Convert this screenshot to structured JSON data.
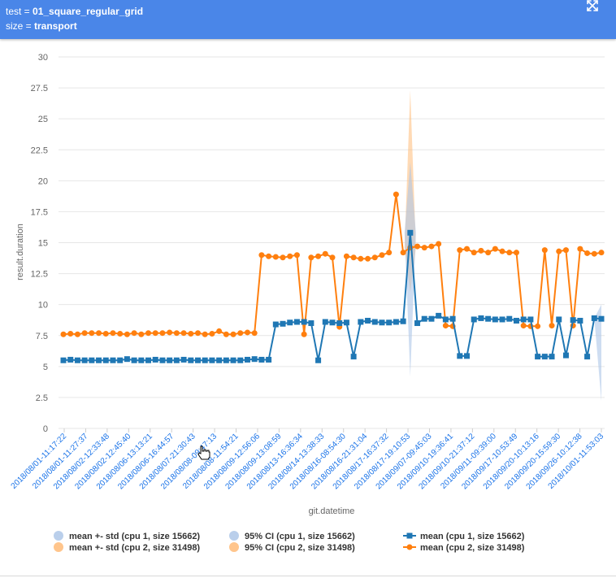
{
  "header": {
    "line1_key": "test = ",
    "line1_value": "01_square_regular_grid",
    "line2_key": "size = ",
    "line2_value": "transport",
    "expand_icon": "expand-icon"
  },
  "colors": {
    "header_bg": "#4a86e8",
    "series1": "#1f77b4",
    "series2": "#ff7f0e",
    "band1": "#aec7e8",
    "band2": "#ffbb78",
    "tick_label": "#1a73e8"
  },
  "chart_data": {
    "type": "line",
    "xlabel": "git.datetime",
    "ylabel": "result.duration",
    "ylim": [
      0,
      30
    ],
    "yticks": [
      "0",
      "2.5",
      "5",
      "7.5",
      "10",
      "12.5",
      "15",
      "17.5",
      "20",
      "22.5",
      "25",
      "27.5",
      "30"
    ],
    "grid": true,
    "legend_position": "bottom",
    "x_tick_labels": [
      "2018/08/01-11:17:22",
      "2018/08/01-11:27:37",
      "2018/08/02-12:33:48",
      "2018/08/02-12:45:40",
      "2018/08/06-13:13:21",
      "2018/08/06-16:44:57",
      "2018/08/07-21:30:43",
      "2018/08/08-09:47:13",
      "2018/08/08-11:54:21",
      "2018/08/09-12:56:06",
      "2018/08/09-13:08:59",
      "2018/08/13-16:36:34",
      "2018/08/14-13:38:33",
      "2018/08/16-08:54:30",
      "2018/08/16-21:31:04",
      "2018/08/17-16:37:32",
      "2018/08/17-19:10:53",
      "2018/09/07-09:45:03",
      "2018/09/10-19:36:41",
      "2018/09/10-21:37:12",
      "2018/09/11-09:39:00",
      "2018/09/17-10:53:49",
      "2018/09/20-10:13:16",
      "2018/09/20-15:59:30",
      "2018/09/26-10:12:38",
      "2018/10/01-11:53:03"
    ],
    "n_points": 77,
    "series": [
      {
        "name": "mean (cpu 1, size 15662)",
        "marker": "square",
        "values": [
          5.5,
          5.55,
          5.5,
          5.5,
          5.5,
          5.5,
          5.5,
          5.5,
          5.5,
          5.6,
          5.5,
          5.5,
          5.5,
          5.55,
          5.5,
          5.5,
          5.5,
          5.55,
          5.5,
          5.5,
          5.5,
          5.5,
          5.5,
          5.5,
          5.5,
          5.5,
          5.55,
          5.6,
          5.55,
          5.55,
          8.4,
          8.45,
          8.55,
          8.6,
          8.6,
          8.5,
          5.5,
          8.6,
          8.55,
          8.5,
          8.55,
          5.8,
          8.6,
          8.7,
          8.6,
          8.55,
          8.55,
          8.6,
          8.65,
          15.8,
          8.5,
          8.85,
          8.85,
          9.1,
          8.8,
          8.85,
          5.85,
          5.85,
          8.8,
          8.9,
          8.85,
          8.8,
          8.8,
          8.85,
          8.7,
          8.8,
          8.8,
          5.8,
          5.8,
          5.8,
          8.8,
          5.9,
          8.75,
          8.7,
          5.8,
          8.9,
          8.85
        ]
      },
      {
        "name": "mean (cpu 2, size 31498)",
        "marker": "circle",
        "values": [
          7.6,
          7.65,
          7.6,
          7.7,
          7.7,
          7.7,
          7.65,
          7.7,
          7.65,
          7.6,
          7.7,
          7.6,
          7.7,
          7.7,
          7.7,
          7.75,
          7.7,
          7.7,
          7.65,
          7.7,
          7.6,
          7.65,
          7.85,
          7.6,
          7.6,
          7.7,
          7.75,
          7.7,
          14.0,
          13.9,
          13.85,
          13.8,
          13.9,
          14.0,
          7.6,
          13.8,
          13.9,
          14.1,
          13.8,
          8.2,
          13.9,
          13.8,
          13.7,
          13.7,
          13.8,
          14.0,
          14.2,
          18.9,
          14.2,
          14.6,
          14.7,
          14.6,
          14.7,
          14.9,
          8.3,
          8.25,
          14.4,
          14.5,
          14.2,
          14.35,
          14.2,
          14.5,
          14.3,
          14.2,
          14.2,
          8.3,
          8.25,
          8.25,
          14.4,
          8.3,
          14.3,
          14.4,
          8.3,
          14.5,
          14.15,
          14.1,
          14.2
        ]
      },
      {
        "name": "mean +- std (cpu 1, size 15662)",
        "type": "band"
      },
      {
        "name": "mean +- std (cpu 2, size 31498)",
        "type": "band"
      },
      {
        "name": "95% CI (cpu 1, size 15662)",
        "type": "band"
      },
      {
        "name": "95% CI (cpu 2, size 31498)",
        "type": "band"
      }
    ],
    "legend": [
      {
        "label": "mean +- std (cpu 1, size 15662)",
        "kind": "band",
        "color": "#aec7e8"
      },
      {
        "label": "95% CI (cpu 1, size 15662)",
        "kind": "band",
        "color": "#aec7e8"
      },
      {
        "label": "mean (cpu 1, size 15662)",
        "kind": "line-square",
        "color": "#1f77b4"
      },
      {
        "label": "mean +- std (cpu 2, size 31498)",
        "kind": "band",
        "color": "#ffbb78"
      },
      {
        "label": "95% CI (cpu 2, size 31498)",
        "kind": "band",
        "color": "#ffbb78"
      },
      {
        "label": "mean (cpu 2, size 31498)",
        "kind": "line-circle",
        "color": "#ff7f0e"
      }
    ]
  }
}
